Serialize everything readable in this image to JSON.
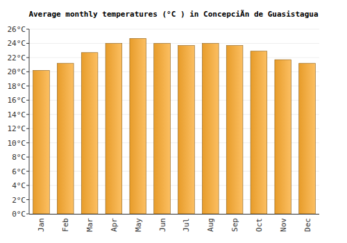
{
  "chart_data": {
    "type": "bar",
    "title": "Average monthly temperatures (°C ) in ConcepciÃn de Guasistagua",
    "categories": [
      "Jan",
      "Feb",
      "Mar",
      "Apr",
      "May",
      "Jun",
      "Jul",
      "Aug",
      "Sep",
      "Oct",
      "Nov",
      "Dec"
    ],
    "values": [
      20.2,
      21.2,
      22.7,
      24.0,
      24.7,
      24.0,
      23.7,
      24.0,
      23.7,
      22.9,
      21.7,
      21.2
    ],
    "color": "#fbaa2e",
    "ylim": [
      0,
      26
    ],
    "yticks": [
      {
        "value": 0,
        "label": "0°C"
      },
      {
        "value": 2,
        "label": "2°C"
      },
      {
        "value": 4,
        "label": "4°C"
      },
      {
        "value": 6,
        "label": "6°C"
      },
      {
        "value": 8,
        "label": "8°C"
      },
      {
        "value": 10,
        "label": "10°C"
      },
      {
        "value": 12,
        "label": "12°C"
      },
      {
        "value": 14,
        "label": "14°C"
      },
      {
        "value": 16,
        "label": "16°C"
      },
      {
        "value": 18,
        "label": "18°C"
      },
      {
        "value": 20,
        "label": "20°C"
      },
      {
        "value": 22,
        "label": "22°C"
      },
      {
        "value": 24,
        "label": "24°C"
      },
      {
        "value": 26,
        "label": "26°C"
      }
    ],
    "grid": true
  }
}
